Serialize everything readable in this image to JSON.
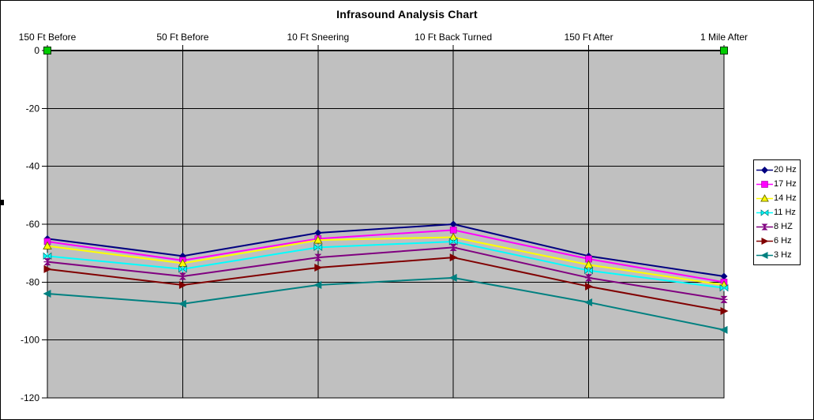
{
  "chart_data": {
    "type": "line",
    "title": "Infrasound Analysis Chart",
    "categories": [
      "150 Ft Before",
      "50 Ft Before",
      "10 Ft Sneering",
      "10 Ft Back Turned",
      "150 Ft After",
      "1 Mile After"
    ],
    "y_ticks": [
      0,
      -20,
      -40,
      -60,
      -80,
      -100,
      -120
    ],
    "ylim": [
      -120,
      0
    ],
    "grid": true,
    "plot_bg_color": "#c0c0c0",
    "axis_color": "#000000",
    "legend_position": "right",
    "series": [
      {
        "name": "20 Hz",
        "color": "#000080",
        "marker": "diamond",
        "values": [
          -65,
          -71,
          -63,
          -60,
          -71,
          -78
        ]
      },
      {
        "name": "17 Hz",
        "color": "#ff00ff",
        "marker": "square",
        "values": [
          -66,
          -72.5,
          -65,
          -62,
          -72,
          -80
        ]
      },
      {
        "name": "14 Hz",
        "color": "#ffff00",
        "marker": "triangle-up",
        "values": [
          -67.5,
          -73.5,
          -65.5,
          -64.5,
          -74,
          -81
        ]
      },
      {
        "name": "11 Hz",
        "color": "#00ffff",
        "marker": "bowtie-h",
        "values": [
          -71,
          -75.5,
          -68,
          -66,
          -76,
          -82
        ]
      },
      {
        "name": "8 HZ",
        "color": "#800080",
        "marker": "bowtie-v",
        "values": [
          -73,
          -78,
          -71.5,
          -68,
          -78.5,
          -86
        ]
      },
      {
        "name": "6 Hz",
        "color": "#800000",
        "marker": "triangle-right",
        "values": [
          -75.5,
          -81,
          -75,
          -71.5,
          -81.5,
          -90
        ]
      },
      {
        "name": "3 Hz",
        "color": "#008080",
        "marker": "triangle-left",
        "values": [
          -84,
          -87.5,
          -81,
          -78.5,
          -87,
          -96.5
        ]
      }
    ],
    "extra_markers": {
      "shape": "square",
      "color": "#00cc00",
      "border_color": "#003300",
      "points": [
        {
          "category": "150 Ft Before",
          "value": 0
        },
        {
          "category": "1 Mile After",
          "value": 0
        }
      ]
    }
  }
}
